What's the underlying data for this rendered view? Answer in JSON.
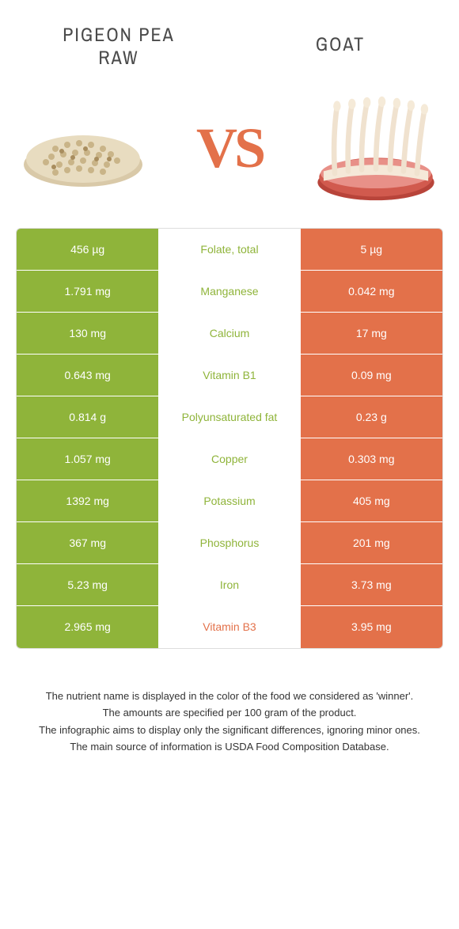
{
  "header": {
    "left_title": "PIGEON PEA\nRAW",
    "right_title": "GOAT",
    "vs": "VS"
  },
  "colors": {
    "left": "#8fb43a",
    "right": "#e3714a",
    "text_dark": "#4a4a4a"
  },
  "rows": [
    {
      "left": "456 µg",
      "label": "Folate, total",
      "right": "5 µg",
      "winner": "left"
    },
    {
      "left": "1.791 mg",
      "label": "Manganese",
      "right": "0.042 mg",
      "winner": "left"
    },
    {
      "left": "130 mg",
      "label": "Calcium",
      "right": "17 mg",
      "winner": "left"
    },
    {
      "left": "0.643 mg",
      "label": "Vitamin B1",
      "right": "0.09 mg",
      "winner": "left"
    },
    {
      "left": "0.814 g",
      "label": "Polyunsaturated fat",
      "right": "0.23 g",
      "winner": "left"
    },
    {
      "left": "1.057 mg",
      "label": "Copper",
      "right": "0.303 mg",
      "winner": "left"
    },
    {
      "left": "1392 mg",
      "label": "Potassium",
      "right": "405 mg",
      "winner": "left"
    },
    {
      "left": "367 mg",
      "label": "Phosphorus",
      "right": "201 mg",
      "winner": "left"
    },
    {
      "left": "5.23 mg",
      "label": "Iron",
      "right": "3.73 mg",
      "winner": "left"
    },
    {
      "left": "2.965 mg",
      "label": "Vitamin B3",
      "right": "3.95 mg",
      "winner": "right"
    }
  ],
  "footer": {
    "line1": "The nutrient name is displayed in the color of the food we considered as 'winner'.",
    "line2": "The amounts are specified per 100 gram of the product.",
    "line3": "The infographic aims to display only the significant differences, ignoring minor ones.",
    "line4": "The main source of information is USDA Food Composition Database."
  }
}
